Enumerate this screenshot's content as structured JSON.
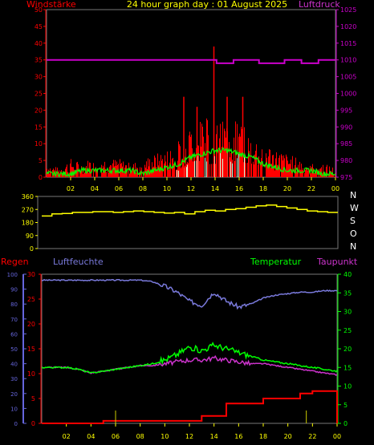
{
  "header": {
    "left_label": "Windstärke",
    "title": "24 hour graph day : 01 August 2025",
    "right_label": "Luftdruck"
  },
  "colors": {
    "red": "#ff0000",
    "magenta": "#cc00cc",
    "lime": "#00ff00",
    "yellow": "#ffff00",
    "green_gust": "#00cc00",
    "white_bar": "#d8f8d8",
    "axis_gray": "#777777",
    "blue": "#6666dd",
    "purple": "#cc33cc",
    "humidity": "#7a7adc"
  },
  "chart_data": [
    {
      "type": "bar",
      "name": "wind",
      "x_ticks": [
        "02",
        "04",
        "06",
        "08",
        "10",
        "12",
        "14",
        "16",
        "18",
        "20",
        "22",
        "00"
      ],
      "y_left": {
        "ticks": [
          "0",
          "5",
          "10",
          "15",
          "20",
          "25",
          "30",
          "35",
          "40",
          "45",
          "50"
        ],
        "lim": [
          0,
          50
        ]
      },
      "y_right": {
        "ticks": [
          "975",
          "980",
          "985",
          "990",
          "995",
          "1000",
          "1005",
          "1010",
          "1015",
          "1020",
          "1025"
        ],
        "lim": [
          975,
          1025
        ]
      },
      "pressure": [
        1010,
        1010,
        1010,
        1010,
        1010,
        1010,
        1010,
        1010,
        1010,
        1010,
        1010,
        1010,
        1010,
        1010,
        1010,
        1010,
        1010,
        1010,
        1010,
        1010,
        1009,
        1009,
        1010,
        1010,
        1010,
        1009,
        1009,
        1009,
        1010,
        1010,
        1009,
        1009,
        1010,
        1010
      ],
      "gust_peaks": [
        {
          "x": 13.9,
          "y": 39
        },
        {
          "x": 11.4,
          "y": 24
        },
        {
          "x": 15.0,
          "y": 24
        },
        {
          "x": 16.3,
          "y": 24
        },
        {
          "x": 12.5,
          "y": 21
        }
      ],
      "avg_wind": [
        1,
        1,
        1,
        2,
        2,
        2,
        2,
        2,
        1,
        2,
        3,
        4,
        6,
        7,
        8,
        8,
        7,
        6,
        4,
        3,
        2,
        2,
        2,
        1,
        1
      ],
      "gust_envelope": [
        3,
        2,
        4,
        3,
        5,
        4,
        4,
        3,
        4,
        5,
        6,
        8,
        11,
        13,
        12,
        13,
        12,
        9,
        8,
        6,
        5,
        4,
        3,
        3,
        2
      ]
    },
    {
      "type": "line",
      "name": "wind-direction",
      "y_ticks": [
        "360",
        "270",
        "180",
        "90",
        "0"
      ],
      "compass": [
        "N",
        "W",
        "S",
        "O",
        "N"
      ],
      "ylim": [
        0,
        360
      ],
      "values": [
        225,
        240,
        242,
        250,
        250,
        255,
        255,
        250,
        255,
        260,
        255,
        250,
        245,
        250,
        240,
        255,
        265,
        260,
        270,
        275,
        285,
        295,
        300,
        290,
        280,
        270,
        260,
        255,
        250
      ]
    },
    {
      "type": "line",
      "name": "weather",
      "labels": {
        "rain": "Regen",
        "humidity": "Luftfeuchte",
        "temp": "Temperatur",
        "dew": "Taupunkt"
      },
      "x_ticks": [
        "02",
        "04",
        "06",
        "08",
        "10",
        "12",
        "14",
        "16",
        "18",
        "20",
        "22",
        "00"
      ],
      "y_left": {
        "ticks": [
          "0",
          "10",
          "20",
          "30",
          "40",
          "50",
          "60",
          "70",
          "80",
          "90",
          "100"
        ],
        "lim": [
          0,
          100
        ]
      },
      "y_rain": {
        "ticks": [
          "0",
          "5",
          "10",
          "15",
          "20",
          "25",
          "30"
        ],
        "lim": [
          0,
          30
        ]
      },
      "y_right": {
        "ticks": [
          "0",
          "5",
          "10",
          "15",
          "20",
          "25",
          "30",
          "35",
          "40"
        ],
        "lim": [
          0,
          40
        ]
      },
      "humidity": [
        96,
        96,
        96,
        96,
        96,
        96,
        96,
        96,
        96,
        95,
        92,
        88,
        82,
        79,
        88,
        82,
        78,
        80,
        84,
        86,
        87,
        88,
        88,
        89,
        89
      ],
      "temperature": [
        15,
        15,
        15,
        14.5,
        13.5,
        14,
        14.5,
        15,
        15.5,
        16,
        17,
        18.5,
        20.5,
        19.5,
        21,
        20,
        19,
        18,
        17,
        16.5,
        16,
        15.5,
        15,
        14.5,
        14
      ],
      "dewpoint": [
        15,
        15,
        15,
        14.5,
        13.5,
        14,
        14.5,
        15,
        15.5,
        15.5,
        16,
        16.5,
        17,
        17,
        17.5,
        17,
        16.5,
        16,
        16,
        15.5,
        15,
        14.5,
        14,
        13.5,
        13
      ],
      "rain": [
        0,
        0,
        0,
        0,
        0,
        0.5,
        0.5,
        0.5,
        0.5,
        0.5,
        0.5,
        0.5,
        0.5,
        1.5,
        1.5,
        4,
        4,
        4,
        5,
        5,
        5,
        6,
        6.5,
        6.5,
        6.5
      ]
    }
  ]
}
